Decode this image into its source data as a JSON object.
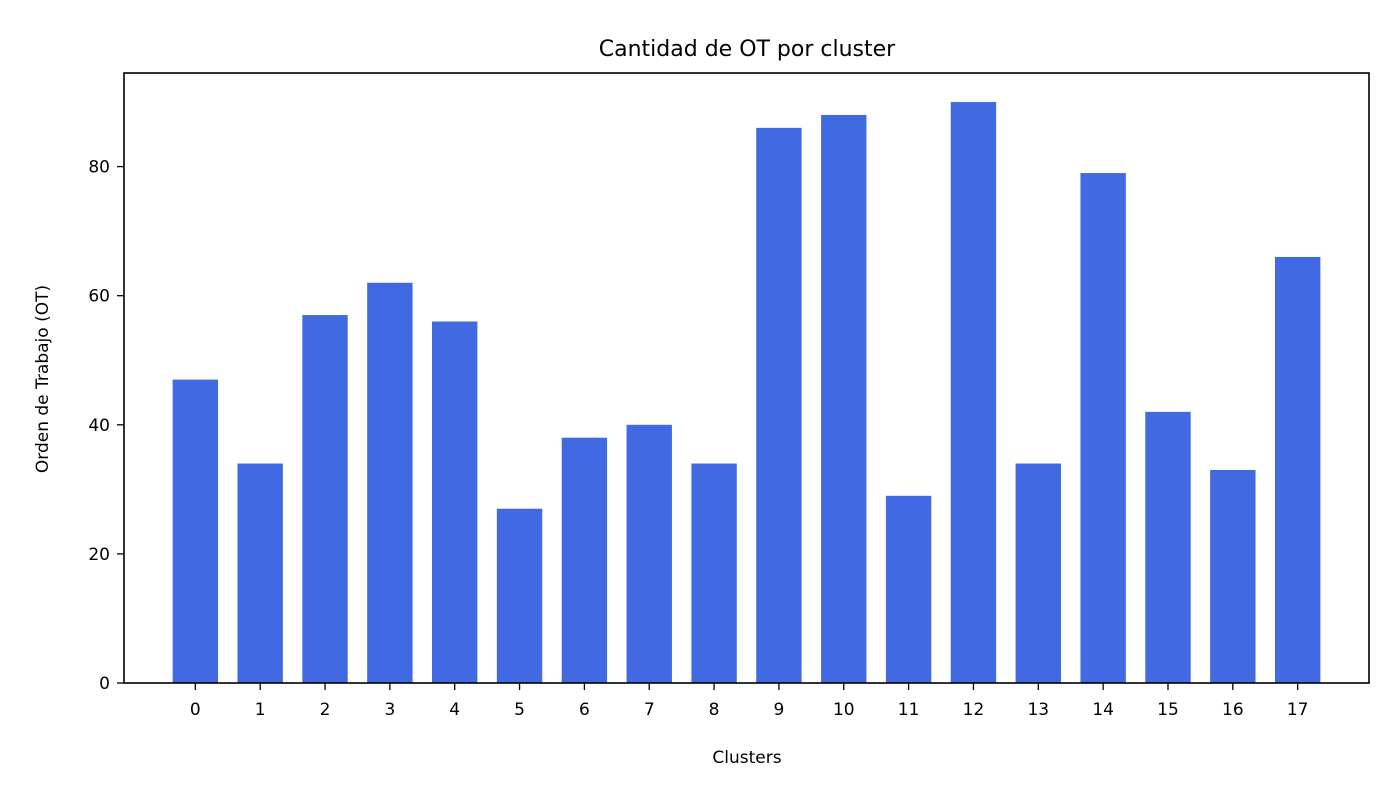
{
  "chart_data": {
    "type": "bar",
    "title": "Cantidad de OT por cluster",
    "xlabel": "Clusters",
    "ylabel": "Orden de Trabajo (OT)",
    "categories": [
      "0",
      "1",
      "2",
      "3",
      "4",
      "5",
      "6",
      "7",
      "8",
      "9",
      "10",
      "11",
      "12",
      "13",
      "14",
      "15",
      "16",
      "17"
    ],
    "values": [
      47,
      34,
      57,
      62,
      56,
      27,
      38,
      40,
      34,
      86,
      88,
      29,
      90,
      34,
      79,
      42,
      33,
      66
    ],
    "ylim": [
      0,
      94.5
    ],
    "yticks": [
      0,
      20,
      40,
      60,
      80
    ],
    "grid": false,
    "bar_color": "#4169E1"
  }
}
